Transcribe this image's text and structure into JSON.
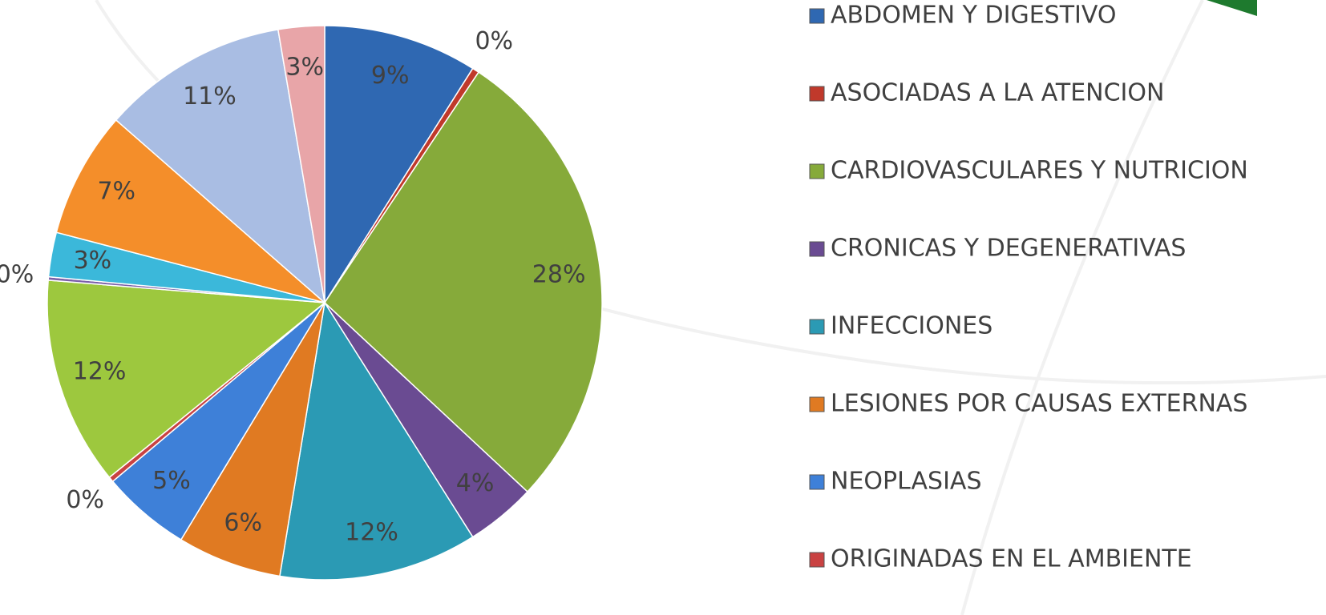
{
  "chart_data": {
    "type": "pie",
    "categories": [
      "ABDOMEN Y DIGESTIVO",
      "ASOCIADAS A LA ATENCION",
      "CARDIOVASCULARES Y NUTRICION",
      "CRONICAS Y DEGENERATIVAS",
      "INFECCIONES",
      "LESIONES POR CAUSAS EXTERNAS",
      "NEOPLASIAS",
      "ORIGINADAS EN EL AMBIENTE",
      null,
      null,
      null,
      null,
      null,
      null
    ],
    "values": [
      9.0,
      0.4,
      27.7,
      4.1,
      11.6,
      6.1,
      5.2,
      0.3,
      12.2,
      0.2,
      2.6,
      7.4,
      10.9,
      2.7
    ],
    "value_labels": [
      "9%",
      "0%",
      "28%",
      "4%",
      "12%",
      "6%",
      "5%",
      "0%",
      "12%",
      "0%",
      "3%",
      "7%",
      "11%",
      "3%"
    ],
    "colors": [
      "#2f68b2",
      "#c0392b",
      "#86aa3a",
      "#6a4b92",
      "#2b9ab4",
      "#e07a22",
      "#3e80d8",
      "#c94242",
      "#9dc83e",
      "#7b5fa8",
      "#3bb8da",
      "#f48e2a",
      "#a9bde3",
      "#e8a5a8"
    ]
  }
}
